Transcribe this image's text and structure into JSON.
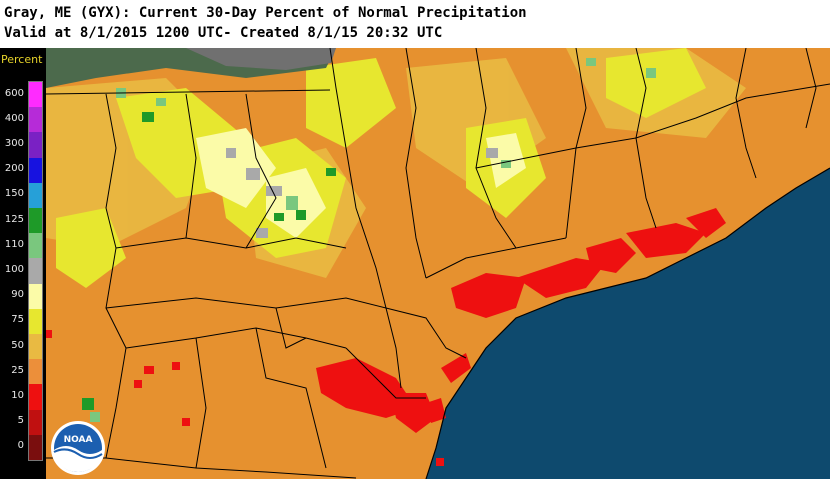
{
  "title": {
    "line1": "Gray, ME (GYX): Current 30-Day Percent of Normal Precipitation",
    "line2": "Valid at 8/1/2015 1200 UTC- Created 8/1/15 20:32 UTC"
  },
  "legend": {
    "title": "Percent",
    "bins": [
      {
        "label": "600",
        "color": "#ff2bff"
      },
      {
        "label": "400",
        "color": "#b62bd8"
      },
      {
        "label": "300",
        "color": "#7a21c4"
      },
      {
        "label": "200",
        "color": "#1712e0"
      },
      {
        "label": "150",
        "color": "#26a0d8"
      },
      {
        "label": "125",
        "color": "#1e9a28"
      },
      {
        "label": "110",
        "color": "#7ac77e"
      },
      {
        "label": "100",
        "color": "#a9a9a9"
      },
      {
        "label": "90",
        "color": "#fbfba8"
      },
      {
        "label": "75",
        "color": "#e7e72f"
      },
      {
        "label": "50",
        "color": "#e9ba42"
      },
      {
        "label": "25",
        "color": "#ec8f3a"
      },
      {
        "label": "10",
        "color": "#ee1010"
      },
      {
        "label": "5",
        "color": "#c01010"
      },
      {
        "label": "0",
        "color": "#7a0e0e"
      }
    ]
  },
  "map": {
    "ocean_color": "#0e4a6e",
    "base_color": "#e6912f",
    "boundary_color": "#000000"
  },
  "logo": {
    "text": "NOAA"
  }
}
